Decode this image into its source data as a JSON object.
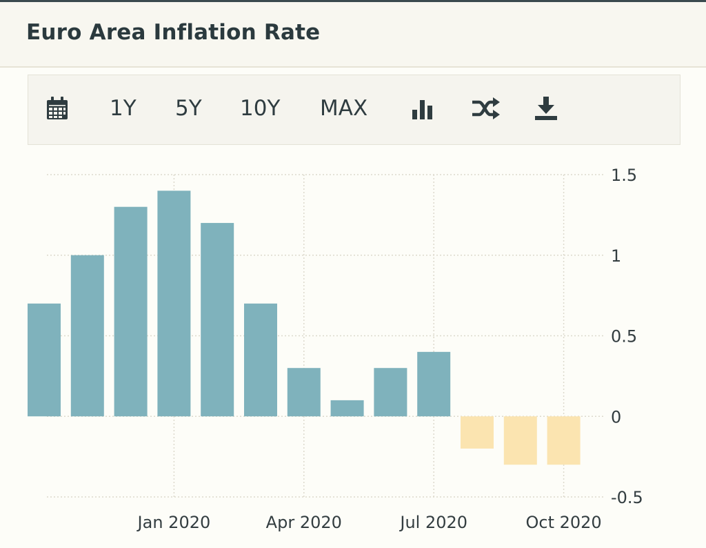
{
  "header": {
    "title": "Euro Area Inflation Rate"
  },
  "toolbar": {
    "calendar_icon": "calendar-icon",
    "ranges": [
      "1Y",
      "5Y",
      "10Y",
      "MAX"
    ],
    "chart_type_icon": "bar-chart-icon",
    "compare_icon": "shuffle-icon",
    "download_icon": "download-icon"
  },
  "colors": {
    "positive_bar": "#7fb2bc",
    "negative_bar": "#fbe4b0",
    "grid": "#dcd9cc",
    "text": "#2f3c40"
  },
  "chart_data": {
    "type": "bar",
    "title": "",
    "xlabel": "",
    "ylabel": "",
    "ylim": [
      -0.5,
      1.5
    ],
    "y_ticks": [
      "1.5",
      "1",
      "0.5",
      "0",
      "-0.5"
    ],
    "x_tick_labels": [
      "Jan 2020",
      "Apr 2020",
      "Jul 2020",
      "Oct 2020"
    ],
    "grid": true,
    "y_axis_position": "right",
    "categories": [
      "Oct 2019",
      "Nov 2019",
      "Dec 2019",
      "Jan 2020",
      "Feb 2020",
      "Mar 2020",
      "Apr 2020",
      "May 2020",
      "Jun 2020",
      "Jul 2020",
      "Aug 2020",
      "Sep 2020",
      "Oct 2020"
    ],
    "values": [
      0.7,
      1.0,
      1.3,
      1.4,
      1.2,
      0.7,
      0.3,
      0.1,
      0.3,
      0.4,
      -0.2,
      -0.3,
      -0.3
    ]
  }
}
